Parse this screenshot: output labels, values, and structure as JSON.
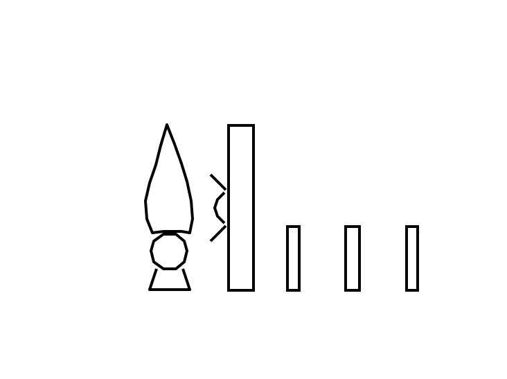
{
  "scene": {
    "background": "#ffffff",
    "stroke_color": "#000000",
    "icons": {
      "figure": "candle-flame-figure-icon",
      "tall_block": "tall-block-icon",
      "impact": "impact-bracket-icon",
      "short_blocks": [
        "short-block-icon",
        "short-block-icon",
        "short-block-icon"
      ]
    }
  }
}
